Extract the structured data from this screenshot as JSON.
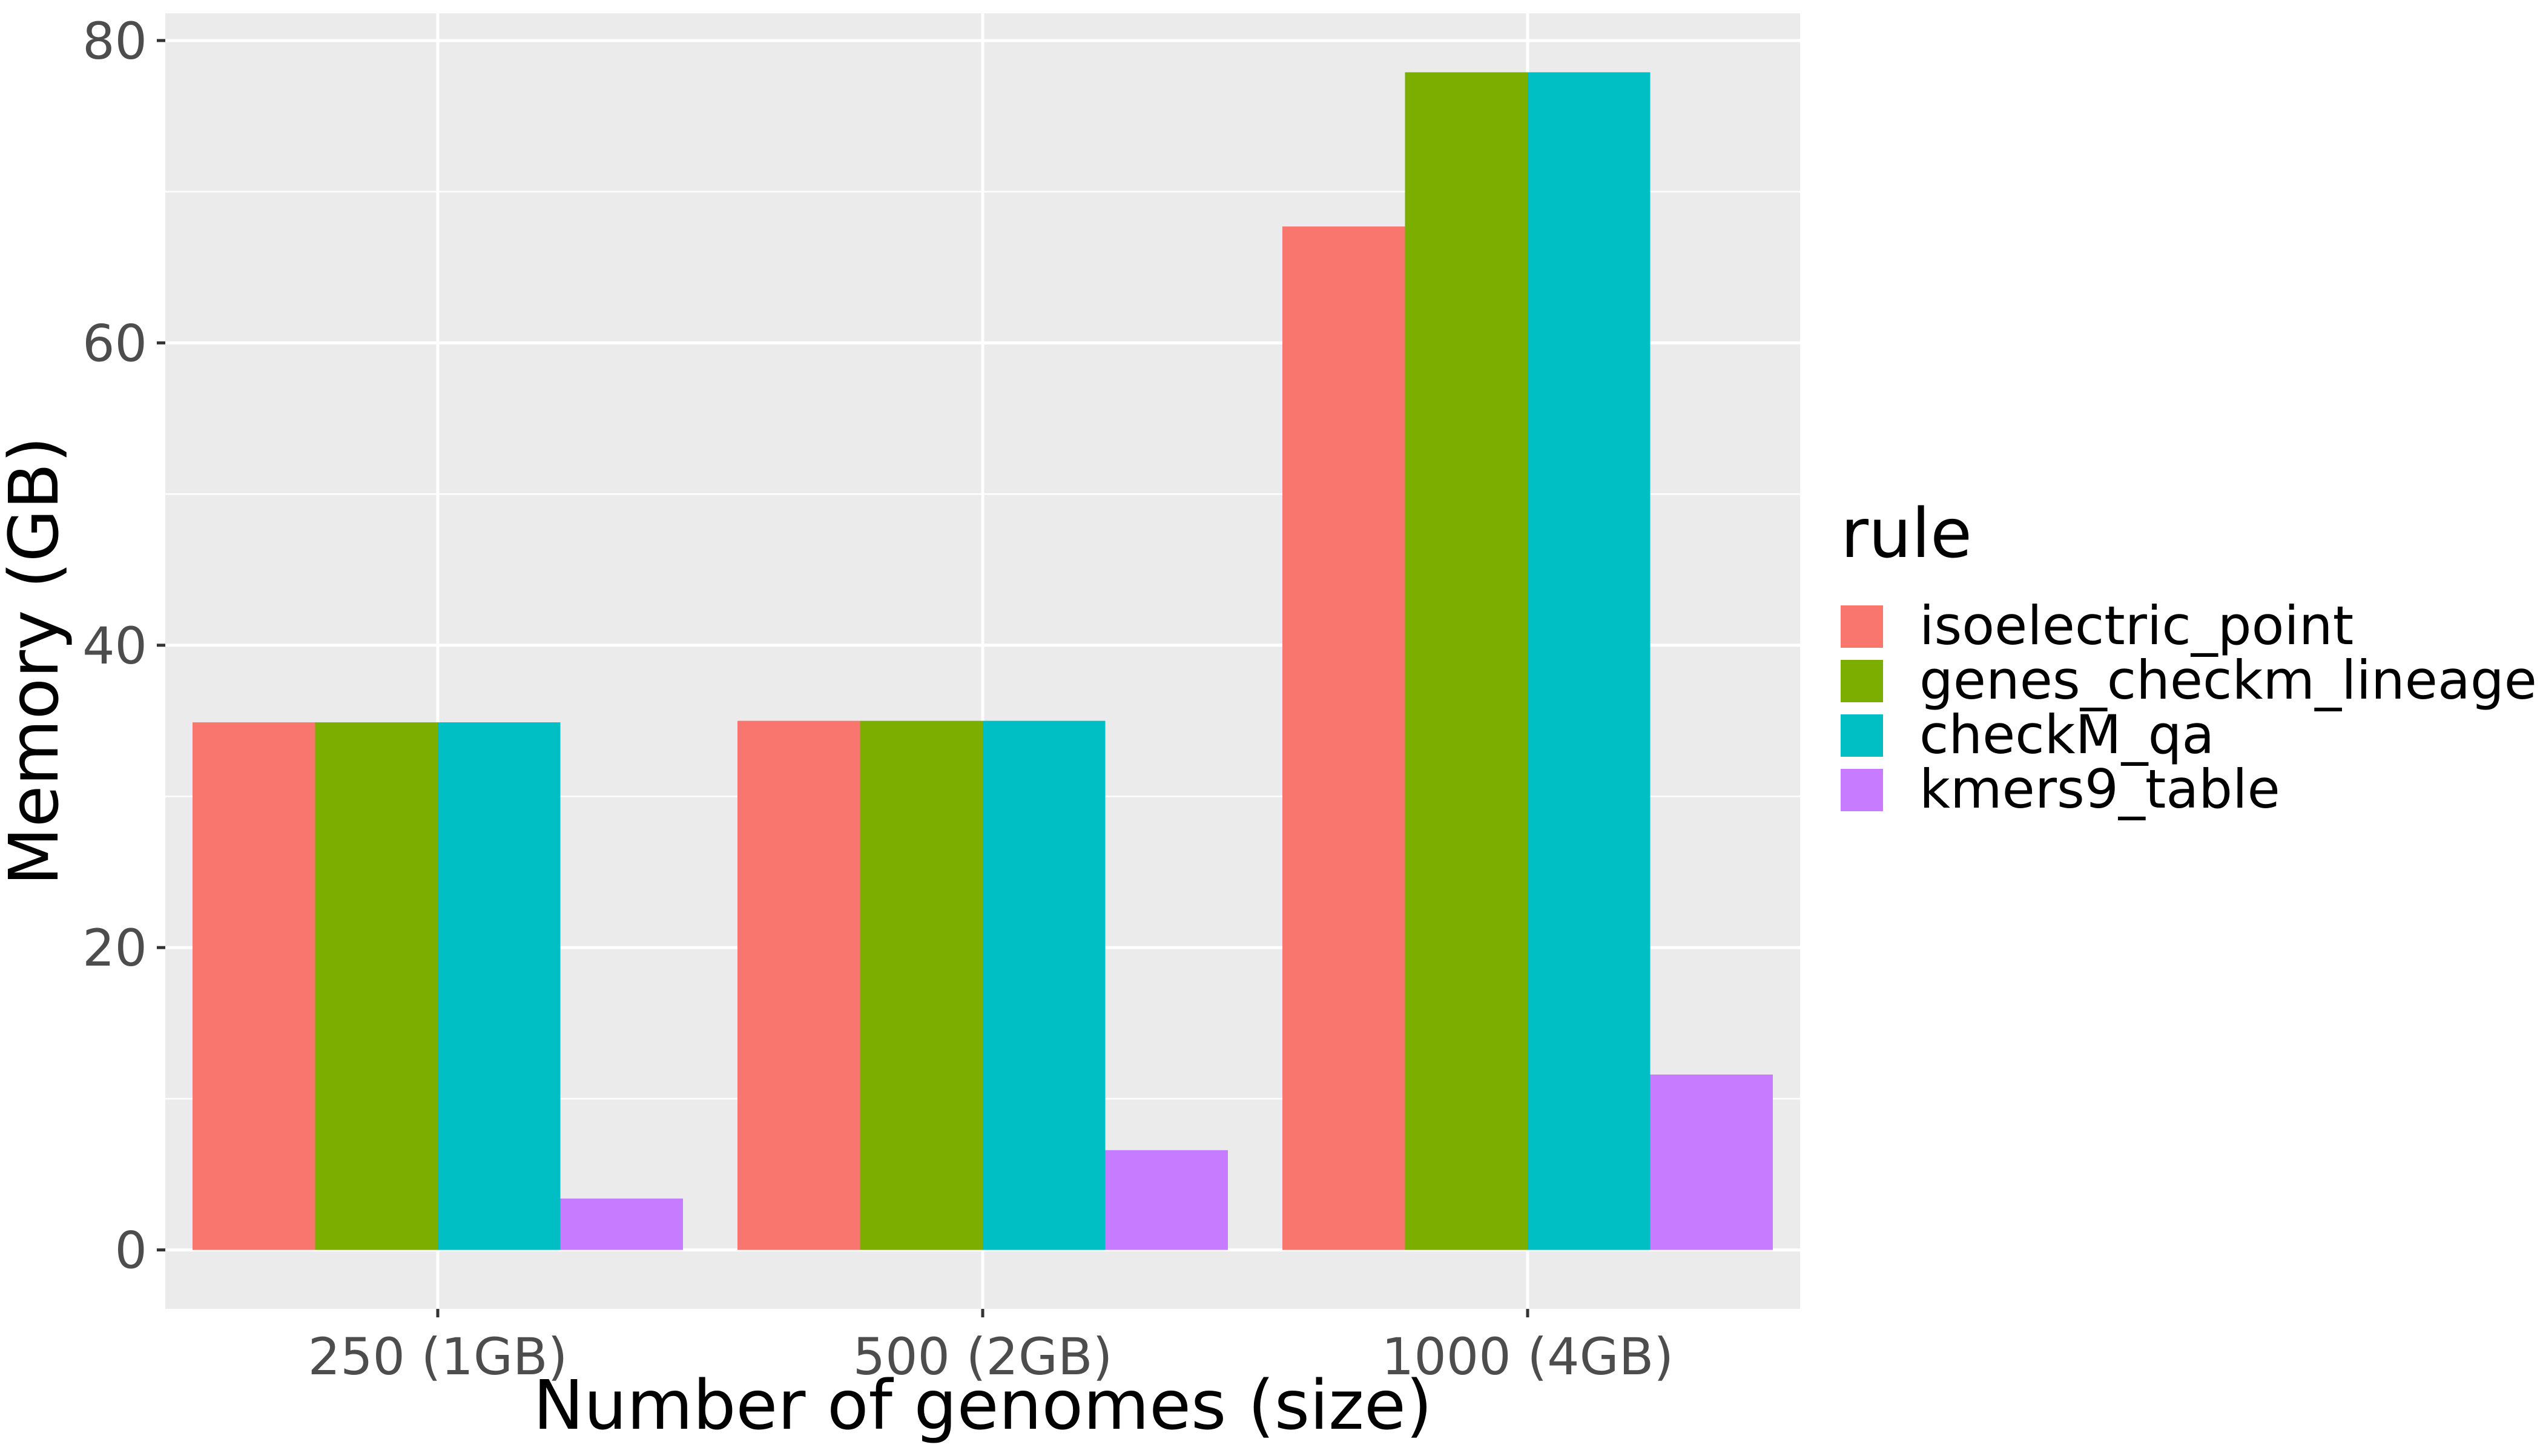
{
  "chart_data": {
    "type": "bar",
    "title": "",
    "xlabel": "Number of genomes (size)",
    "ylabel": "Memory (GB)",
    "categories": [
      "250 (1GB)",
      "500 (2GB)",
      "1000 (4GB)"
    ],
    "series": [
      {
        "name": "isoelectric_point",
        "color": "#F8766D",
        "values": [
          34.9,
          35.0,
          67.7
        ]
      },
      {
        "name": "genes_checkm_lineage",
        "color": "#7CAE00",
        "values": [
          34.9,
          35.0,
          77.9
        ]
      },
      {
        "name": "checkM_qa",
        "color": "#00BFC4",
        "values": [
          34.9,
          35.0,
          77.9
        ]
      },
      {
        "name": "kmers9_table",
        "color": "#C77CFF",
        "values": [
          3.4,
          6.6,
          11.6
        ]
      }
    ],
    "ylim": [
      -3.9,
      81.8
    ],
    "yticks": [
      0,
      20,
      40,
      60,
      80
    ],
    "yticks_minor": [
      10,
      30,
      50,
      70
    ],
    "grid": true,
    "legend": {
      "title": "rule",
      "position": "right"
    },
    "colors": {
      "panel_background": "#EBEBEB",
      "grid": "#FFFFFF",
      "tick_text": "#4D4D4D",
      "tick_mark": "#333333"
    }
  }
}
